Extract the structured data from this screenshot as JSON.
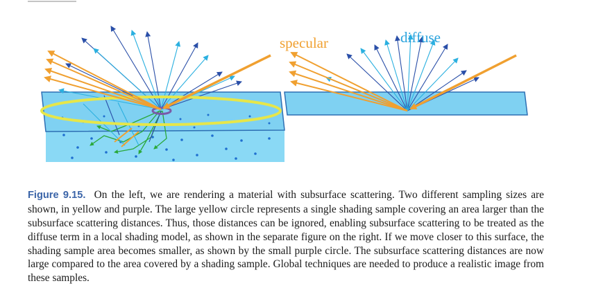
{
  "figure": {
    "label_specular": "specular",
    "label_diffuse": "diffuse",
    "colors": {
      "surface_top": "#7fd1f2",
      "surface_body": "#8ad9f5",
      "outline": "#2d6fb3",
      "specular_ray": "#f0a030",
      "diffuse_ray_dark": "#2a4fa8",
      "diffuse_ray_light": "#2bb0e0",
      "shading_circle_large": "#e6e64a",
      "shading_circle_small": "#7a5aa8",
      "subsurface_path": "#2aa83a",
      "particle": "#1f6fd0"
    }
  },
  "caption": {
    "label": "Figure 9.15.",
    "text": "On the left, we are rendering a material with subsurface scattering. Two different sampling sizes are shown, in yellow and purple. The large yellow circle represents a single shading sample covering an area larger than the subsurface scattering distances. Thus, those distances can be ignored, enabling subsurface scattering to be treated as the diffuse term in a local shading model, as shown in the separate figure on the right. If we move closer to this surface, the shading sample area becomes smaller, as shown by the small purple circle. The subsurface scattering distances are now large compared to the area covered by a shading sample. Global techniques are needed to produce a realistic image from these samples."
  }
}
